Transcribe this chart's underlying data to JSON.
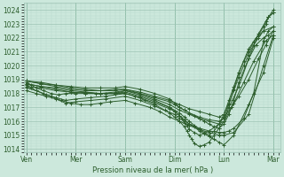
{
  "bg_color": "#cce8dc",
  "grid_major_color": "#9dc4b4",
  "grid_minor_color": "#b8d9cc",
  "line_color": "#2d5e2d",
  "xlabel_text": "Pression niveau de la mer( hPa )",
  "xtick_labels": [
    "Ven",
    "Mer",
    "Sam",
    "Dim",
    "Lun",
    "Mar"
  ],
  "xtick_positions": [
    0,
    1,
    2,
    3,
    4,
    5
  ],
  "ylim": [
    1013.8,
    1024.5
  ],
  "xlim": [
    -0.05,
    5.15
  ],
  "yticks": [
    1014,
    1015,
    1016,
    1017,
    1018,
    1019,
    1020,
    1021,
    1022,
    1023,
    1024
  ],
  "figsize": [
    3.2,
    2.0
  ],
  "dpi": 100,
  "lines": [
    {
      "x": [
        0.0,
        0.1,
        0.2,
        0.35,
        0.5,
        0.65,
        0.8,
        1.0,
        1.2,
        1.4,
        1.6,
        1.8,
        2.0,
        2.2,
        2.4,
        2.6,
        2.8,
        3.0,
        3.1,
        3.2,
        3.3,
        3.5,
        3.7,
        3.9,
        4.0,
        4.1,
        4.2,
        4.4,
        4.6,
        4.8,
        4.9,
        5.0
      ],
      "y": [
        1018.8,
        1018.6,
        1018.4,
        1018.2,
        1018.0,
        1017.9,
        1018.0,
        1018.0,
        1018.1,
        1018.0,
        1018.0,
        1018.0,
        1018.0,
        1017.8,
        1017.5,
        1017.2,
        1016.8,
        1016.5,
        1016.2,
        1016.0,
        1015.8,
        1015.5,
        1015.3,
        1015.2,
        1015.2,
        1015.3,
        1015.5,
        1016.2,
        1018.0,
        1021.8,
        1022.5,
        1022.8
      ]
    },
    {
      "x": [
        0.0,
        0.1,
        0.2,
        0.35,
        0.5,
        0.7,
        0.9,
        1.1,
        1.3,
        1.5,
        1.7,
        2.0,
        2.2,
        2.5,
        2.7,
        2.9,
        3.1,
        3.3,
        3.5,
        3.7,
        3.9,
        4.0,
        4.2,
        4.5,
        4.8,
        5.0
      ],
      "y": [
        1018.6,
        1018.4,
        1018.2,
        1018.0,
        1017.8,
        1017.5,
        1017.3,
        1017.2,
        1017.2,
        1017.3,
        1017.4,
        1017.5,
        1017.3,
        1017.0,
        1016.7,
        1016.3,
        1016.0,
        1015.7,
        1015.4,
        1015.2,
        1015.0,
        1015.0,
        1015.2,
        1016.5,
        1020.0,
        1022.2
      ]
    },
    {
      "x": [
        0.0,
        0.2,
        0.4,
        0.6,
        0.8,
        1.0,
        1.3,
        1.6,
        2.0,
        2.3,
        2.6,
        2.9,
        3.0,
        3.1,
        3.2,
        3.3,
        3.4,
        3.5,
        3.6,
        3.7,
        3.8,
        3.9,
        4.0,
        4.2,
        4.5,
        4.8,
        5.0
      ],
      "y": [
        1018.4,
        1018.2,
        1017.9,
        1017.7,
        1017.5,
        1017.6,
        1017.7,
        1017.8,
        1018.0,
        1017.7,
        1017.3,
        1016.9,
        1016.7,
        1016.4,
        1016.1,
        1015.8,
        1015.6,
        1015.3,
        1015.1,
        1014.9,
        1014.7,
        1014.5,
        1014.3,
        1015.0,
        1017.2,
        1019.5,
        1022.0
      ]
    },
    {
      "x": [
        0.0,
        0.2,
        0.4,
        0.6,
        0.8,
        1.0,
        1.3,
        1.6,
        2.0,
        2.3,
        2.6,
        2.9,
        3.0,
        3.1,
        3.2,
        3.25,
        3.3,
        3.35,
        3.4,
        3.5,
        3.6,
        3.7,
        3.8,
        3.9,
        4.0,
        4.1,
        4.3,
        4.5,
        4.7,
        4.9,
        5.0
      ],
      "y": [
        1018.2,
        1018.0,
        1017.8,
        1017.6,
        1017.3,
        1017.4,
        1017.5,
        1017.6,
        1017.8,
        1017.5,
        1017.1,
        1016.6,
        1016.3,
        1016.0,
        1015.6,
        1015.3,
        1015.0,
        1014.7,
        1014.4,
        1014.2,
        1014.3,
        1014.5,
        1015.0,
        1015.5,
        1016.0,
        1017.0,
        1018.5,
        1020.5,
        1022.3,
        1023.5,
        1023.8
      ]
    },
    {
      "x": [
        0.0,
        0.3,
        0.6,
        0.9,
        1.2,
        1.5,
        1.8,
        2.0,
        2.3,
        2.6,
        2.9,
        3.1,
        3.2,
        3.3,
        3.4,
        3.5,
        3.6,
        3.7,
        3.8,
        3.9,
        4.0,
        4.15,
        4.3,
        4.5,
        4.7,
        4.85,
        5.0
      ],
      "y": [
        1018.7,
        1018.5,
        1018.3,
        1018.1,
        1018.0,
        1018.0,
        1018.1,
        1018.2,
        1017.9,
        1017.5,
        1017.0,
        1016.6,
        1016.3,
        1016.0,
        1015.7,
        1015.4,
        1015.2,
        1015.0,
        1015.3,
        1015.8,
        1016.3,
        1017.0,
        1017.8,
        1019.0,
        1020.5,
        1021.5,
        1022.5
      ]
    },
    {
      "x": [
        0.0,
        0.3,
        0.6,
        0.9,
        1.2,
        1.5,
        1.8,
        2.0,
        2.3,
        2.6,
        2.9,
        3.1,
        3.3,
        3.5,
        3.7,
        3.9,
        4.0,
        4.2,
        4.4,
        4.6,
        4.85,
        5.0
      ],
      "y": [
        1018.9,
        1018.7,
        1018.5,
        1018.3,
        1018.2,
        1018.2,
        1018.3,
        1018.3,
        1018.0,
        1017.6,
        1017.2,
        1016.8,
        1016.5,
        1016.2,
        1016.0,
        1015.8,
        1016.0,
        1017.3,
        1018.8,
        1020.3,
        1021.8,
        1022.2
      ]
    },
    {
      "x": [
        0.0,
        0.3,
        0.6,
        0.9,
        1.2,
        1.5,
        1.8,
        2.0,
        2.3,
        2.6,
        2.9,
        3.0,
        3.1,
        3.2,
        3.3,
        3.5,
        3.7,
        3.9,
        4.0,
        4.1,
        4.2,
        4.3,
        4.5,
        4.65,
        4.8,
        5.0
      ],
      "y": [
        1018.9,
        1018.8,
        1018.6,
        1018.5,
        1018.4,
        1018.4,
        1018.4,
        1018.5,
        1018.3,
        1018.0,
        1017.6,
        1017.3,
        1017.0,
        1016.8,
        1016.6,
        1016.3,
        1016.1,
        1016.0,
        1016.2,
        1017.2,
        1018.3,
        1019.5,
        1021.2,
        1022.0,
        1022.5,
        1022.8
      ]
    },
    {
      "x": [
        0.0,
        0.3,
        0.6,
        0.9,
        1.2,
        1.5,
        1.8,
        2.0,
        2.3,
        2.6,
        2.9,
        3.0,
        3.1,
        3.2,
        3.3,
        3.4,
        3.5,
        3.6,
        3.7,
        3.8,
        3.9,
        4.0,
        4.1,
        4.2,
        4.3,
        4.5,
        4.65,
        4.8,
        4.9,
        5.0
      ],
      "y": [
        1018.5,
        1018.4,
        1018.2,
        1018.1,
        1018.0,
        1018.0,
        1018.0,
        1018.2,
        1018.0,
        1017.7,
        1017.4,
        1017.2,
        1017.0,
        1016.8,
        1016.6,
        1016.4,
        1016.2,
        1016.0,
        1015.8,
        1015.6,
        1015.5,
        1015.8,
        1016.5,
        1017.5,
        1018.8,
        1020.5,
        1021.5,
        1022.0,
        1022.2,
        1022.5
      ]
    },
    {
      "x": [
        0.0,
        0.3,
        0.6,
        0.9,
        1.2,
        1.5,
        1.8,
        2.0,
        2.3,
        2.6,
        2.9,
        3.0,
        3.1,
        3.15,
        3.2,
        3.25,
        3.3,
        3.4,
        3.5,
        3.7,
        3.9,
        4.0,
        4.1,
        4.2,
        4.3,
        4.4,
        4.5,
        4.6,
        4.7,
        4.8,
        4.85,
        4.9,
        5.0
      ],
      "y": [
        1018.7,
        1018.5,
        1018.4,
        1018.2,
        1018.1,
        1018.0,
        1018.0,
        1018.1,
        1017.8,
        1017.4,
        1017.0,
        1016.7,
        1016.4,
        1016.2,
        1015.9,
        1015.7,
        1015.4,
        1015.2,
        1015.0,
        1015.3,
        1015.8,
        1016.5,
        1017.5,
        1018.5,
        1019.5,
        1020.3,
        1021.0,
        1021.7,
        1022.2,
        1022.8,
        1023.2,
        1023.5,
        1023.8
      ]
    },
    {
      "x": [
        0.0,
        0.3,
        0.6,
        0.9,
        1.2,
        1.5,
        1.8,
        2.0,
        2.3,
        2.6,
        2.9,
        3.1,
        3.3,
        3.5,
        3.7,
        3.9,
        4.0,
        4.1,
        4.2,
        4.3,
        4.4,
        4.5,
        4.6,
        4.7,
        4.8,
        4.85,
        4.9,
        5.0
      ],
      "y": [
        1018.9,
        1018.7,
        1018.6,
        1018.4,
        1018.3,
        1018.2,
        1018.2,
        1018.3,
        1018.1,
        1017.8,
        1017.5,
        1017.2,
        1016.9,
        1016.7,
        1016.5,
        1016.3,
        1016.5,
        1017.3,
        1018.2,
        1019.2,
        1020.0,
        1020.8,
        1021.5,
        1022.0,
        1022.5,
        1023.0,
        1023.5,
        1024.0
      ]
    }
  ]
}
